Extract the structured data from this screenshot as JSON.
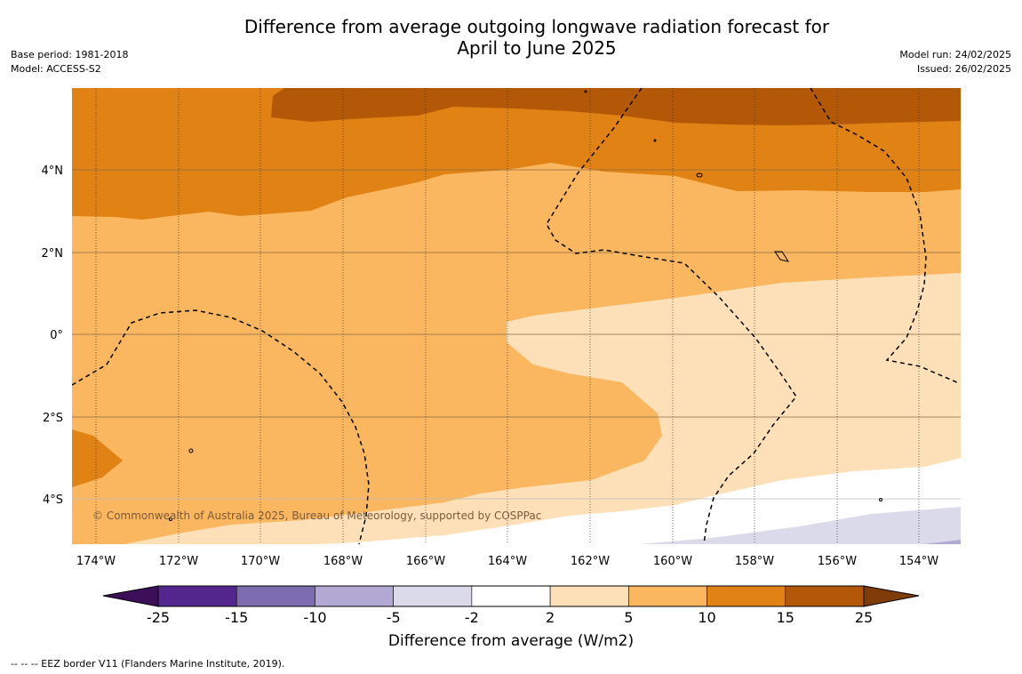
{
  "title_line1": "Difference from average outgoing longwave radiation forecast for",
  "title_line2": "April to June 2025",
  "base_period": "Base period: 1981-2018",
  "model": "Model: ACCESS-S2",
  "model_run": "Model run: 24/02/2025",
  "issued": "Issued: 26/02/2025",
  "copyright": "© Commonwealth of Australia 2025, Bureau of Meteorology, supported by COSPPac",
  "colorbar_label": "Difference from average (W/m2)",
  "colorbar_ticks": [
    "-25",
    "-15",
    "-10",
    "-5",
    "-2",
    "2",
    "5",
    "10",
    "15",
    "25"
  ],
  "colorbar_colors": [
    "#3d0f59",
    "#54278f",
    "#7d6cb0",
    "#b1a8d4",
    "#dadaeb",
    "#ffffff",
    "#fde0b7",
    "#fbb660",
    "#e08214",
    "#b35806",
    "#7f3b08"
  ],
  "footnote": "--  --  -- EEZ border V11 (Flanders Marine Institute, 2019).",
  "map": {
    "lon_labels": [
      "174°W",
      "172°W",
      "170°W",
      "168°W",
      "166°W",
      "164°W",
      "162°W",
      "160°W",
      "158°W",
      "156°W",
      "154°W"
    ],
    "lat_labels": [
      "4°N",
      "2°N",
      "0°",
      "2°S",
      "4°S"
    ]
  }
}
